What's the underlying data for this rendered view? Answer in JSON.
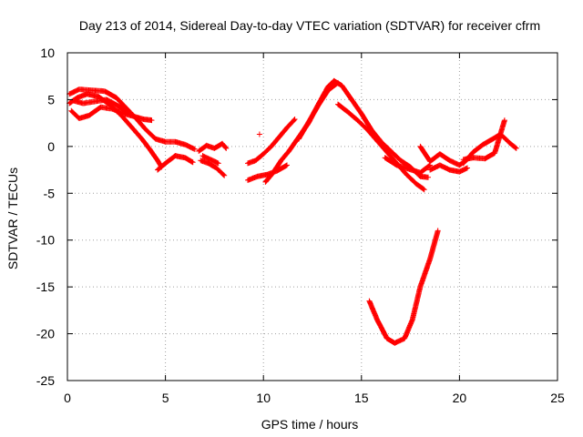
{
  "chart_data": {
    "type": "scatter",
    "title": "Day 213 of 2014, Sidereal Day-to-day VTEC variation (SDTVAR) for receiver cfrm",
    "xlabel": "GPS time / hours",
    "ylabel": "SDTVAR / TECUs",
    "xlim": [
      0,
      25
    ],
    "ylim": [
      -25,
      10
    ],
    "xticks": [
      0,
      5,
      10,
      15,
      20,
      25
    ],
    "yticks": [
      -25,
      -20,
      -15,
      -10,
      -5,
      0,
      5,
      10
    ],
    "grid": true,
    "legend": "none",
    "series": [
      {
        "name": "SDTVAR",
        "color": "#ff0000",
        "marker": "plus",
        "tracks": [
          {
            "x": [
              0.1,
              0.6,
              1.2,
              1.9,
              2.5,
              3.0,
              3.5,
              4.0,
              4.5,
              5.0,
              5.5,
              6.0,
              6.5
            ],
            "y": [
              5.6,
              6.1,
              6.0,
              5.9,
              5.2,
              4.1,
              3.0,
              1.8,
              0.8,
              0.5,
              0.5,
              0.2,
              -0.3
            ]
          },
          {
            "x": [
              0.1,
              0.5,
              1.0,
              1.6,
              2.2,
              2.8,
              3.3,
              3.8,
              4.2,
              4.6,
              4.8
            ],
            "y": [
              4.6,
              5.2,
              5.6,
              5.3,
              4.4,
              3.2,
              2.0,
              0.8,
              -0.3,
              -1.5,
              -2.2
            ]
          },
          {
            "x": [
              0.2,
              0.6,
              1.1,
              1.7,
              2.3,
              2.9,
              3.4,
              3.9,
              4.3
            ],
            "y": [
              3.8,
              3.0,
              3.3,
              4.2,
              4.0,
              3.5,
              3.2,
              2.9,
              2.8
            ]
          },
          {
            "x": [
              0.3,
              0.8,
              1.4,
              2.0,
              2.7,
              3.2
            ],
            "y": [
              4.9,
              4.6,
              4.8,
              5.0,
              4.2,
              3.4
            ]
          },
          {
            "x": [
              4.6,
              5.0,
              5.5,
              6.0,
              6.4
            ],
            "y": [
              -2.5,
              -1.8,
              -1.0,
              -1.2,
              -1.7
            ]
          },
          {
            "x": [
              6.7,
              7.1,
              7.5,
              7.9,
              8.1
            ],
            "y": [
              -0.5,
              0.1,
              -0.2,
              0.3,
              -0.2
            ]
          },
          {
            "x": [
              6.8,
              7.2,
              7.6,
              8.0
            ],
            "y": [
              -1.5,
              -1.8,
              -2.3,
              -3.1
            ]
          },
          {
            "x": [
              6.9,
              7.3,
              7.7
            ],
            "y": [
              -1.0,
              -1.4,
              -1.8
            ]
          },
          {
            "x": [
              9.2,
              9.6,
              10.0,
              10.4,
              10.8,
              11.2,
              11.6
            ],
            "y": [
              -1.8,
              -1.5,
              -0.8,
              0.0,
              1.0,
              2.0,
              2.9
            ]
          },
          {
            "x": [
              9.2,
              9.7,
              10.2,
              10.7,
              11.2
            ],
            "y": [
              -3.6,
              -3.2,
              -3.0,
              -2.6,
              -2.0
            ]
          },
          {
            "x": [
              10.1,
              10.5,
              10.9,
              11.3,
              11.8,
              12.3,
              12.8,
              13.3,
              13.6
            ],
            "y": [
              -3.8,
              -2.8,
              -1.5,
              -0.5,
              1.0,
              2.5,
              4.5,
              6.4,
              7.0
            ]
          },
          {
            "x": [
              11.8,
              12.3,
              12.8,
              13.3,
              13.8
            ],
            "y": [
              0.8,
              2.6,
              4.4,
              6.0,
              6.8
            ]
          },
          {
            "x": [
              13.6,
              14.0,
              14.5,
              15.0,
              15.5,
              16.0,
              16.5,
              17.0,
              17.5,
              18.0,
              18.4
            ],
            "y": [
              7.0,
              6.5,
              5.0,
              3.5,
              1.8,
              0.5,
              -0.5,
              -1.5,
              -2.2,
              -3.2,
              -3.3
            ]
          },
          {
            "x": [
              13.8,
              14.3,
              14.8,
              15.3,
              15.8,
              16.3,
              16.8,
              17.3,
              17.8,
              18.2
            ],
            "y": [
              4.5,
              3.7,
              2.8,
              1.8,
              0.6,
              -0.6,
              -1.8,
              -3.0,
              -4.0,
              -4.6
            ]
          },
          {
            "x": [
              16.2,
              16.8,
              17.4,
              18.0,
              18.5
            ],
            "y": [
              -1.2,
              -2.0,
              -2.4,
              -2.8,
              -2.0
            ]
          },
          {
            "x": [
              18.0,
              18.5,
              19.0,
              19.5,
              20.0,
              20.5
            ],
            "y": [
              0.0,
              -1.6,
              -0.8,
              -1.5,
              -2.0,
              -1.2
            ]
          },
          {
            "x": [
              18.5,
              19.0,
              19.5,
              20.0,
              20.4
            ],
            "y": [
              -2.5,
              -2.0,
              -2.5,
              -2.7,
              -2.3
            ]
          },
          {
            "x": [
              20.2,
              20.7,
              21.2,
              21.7,
              22.1,
              22.6,
              22.9
            ],
            "y": [
              -1.8,
              -0.6,
              0.2,
              0.8,
              1.3,
              0.3,
              -0.2
            ]
          },
          {
            "x": [
              20.2,
              20.7,
              21.3,
              21.8,
              22.3
            ],
            "y": [
              -1.4,
              -1.2,
              -1.3,
              -0.7,
              2.8
            ]
          },
          {
            "x": [
              15.4,
              15.8,
              16.3,
              16.7,
              17.2,
              17.6,
              18.0,
              18.5,
              18.9
            ],
            "y": [
              -16.5,
              -18.5,
              -20.5,
              -21.0,
              -20.5,
              -18.5,
              -15.0,
              -12.0,
              -9.0
            ]
          },
          {
            "x": [
              9.8
            ],
            "y": [
              1.3
            ]
          }
        ]
      }
    ]
  }
}
